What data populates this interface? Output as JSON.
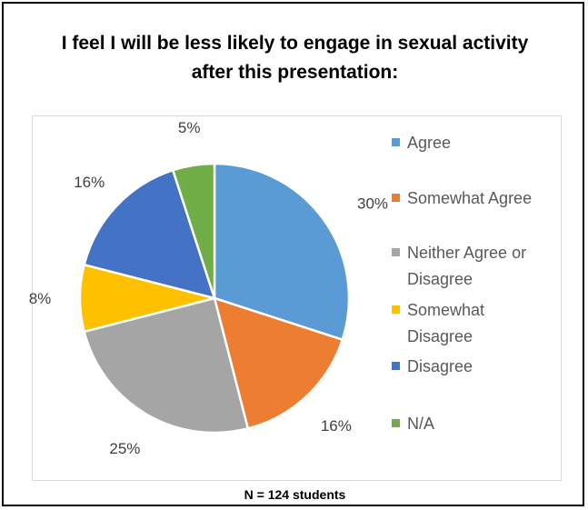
{
  "title_line1": "I feel I will be less likely to engage in sexual activity",
  "title_line2": "after this presentation:",
  "footnote": "N = 124 students",
  "chart_data": {
    "type": "pie",
    "title": "I feel I will be less likely to engage in sexual activity after this presentation:",
    "legend_position": "right",
    "categories": [
      "Agree",
      "Somewhat Agree",
      "Neither Agree or Disagree",
      "Somewhat Disagree",
      "Disagree",
      "N/A"
    ],
    "legend_lines": [
      [
        "Agree"
      ],
      [
        "Somewhat Agree"
      ],
      [
        "Neither Agree or",
        "Disagree"
      ],
      [
        "Somewhat",
        "Disagree"
      ],
      [
        "Disagree"
      ],
      [
        "N/A"
      ]
    ],
    "values": [
      30,
      16,
      25,
      8,
      16,
      5
    ],
    "labels": [
      "30%",
      "16%",
      "25%",
      "8%",
      "16%",
      "5%"
    ],
    "colors": [
      "#5b9bd5",
      "#ed7d31",
      "#a5a5a5",
      "#ffc000",
      "#4472c4",
      "#70ad47"
    ]
  }
}
